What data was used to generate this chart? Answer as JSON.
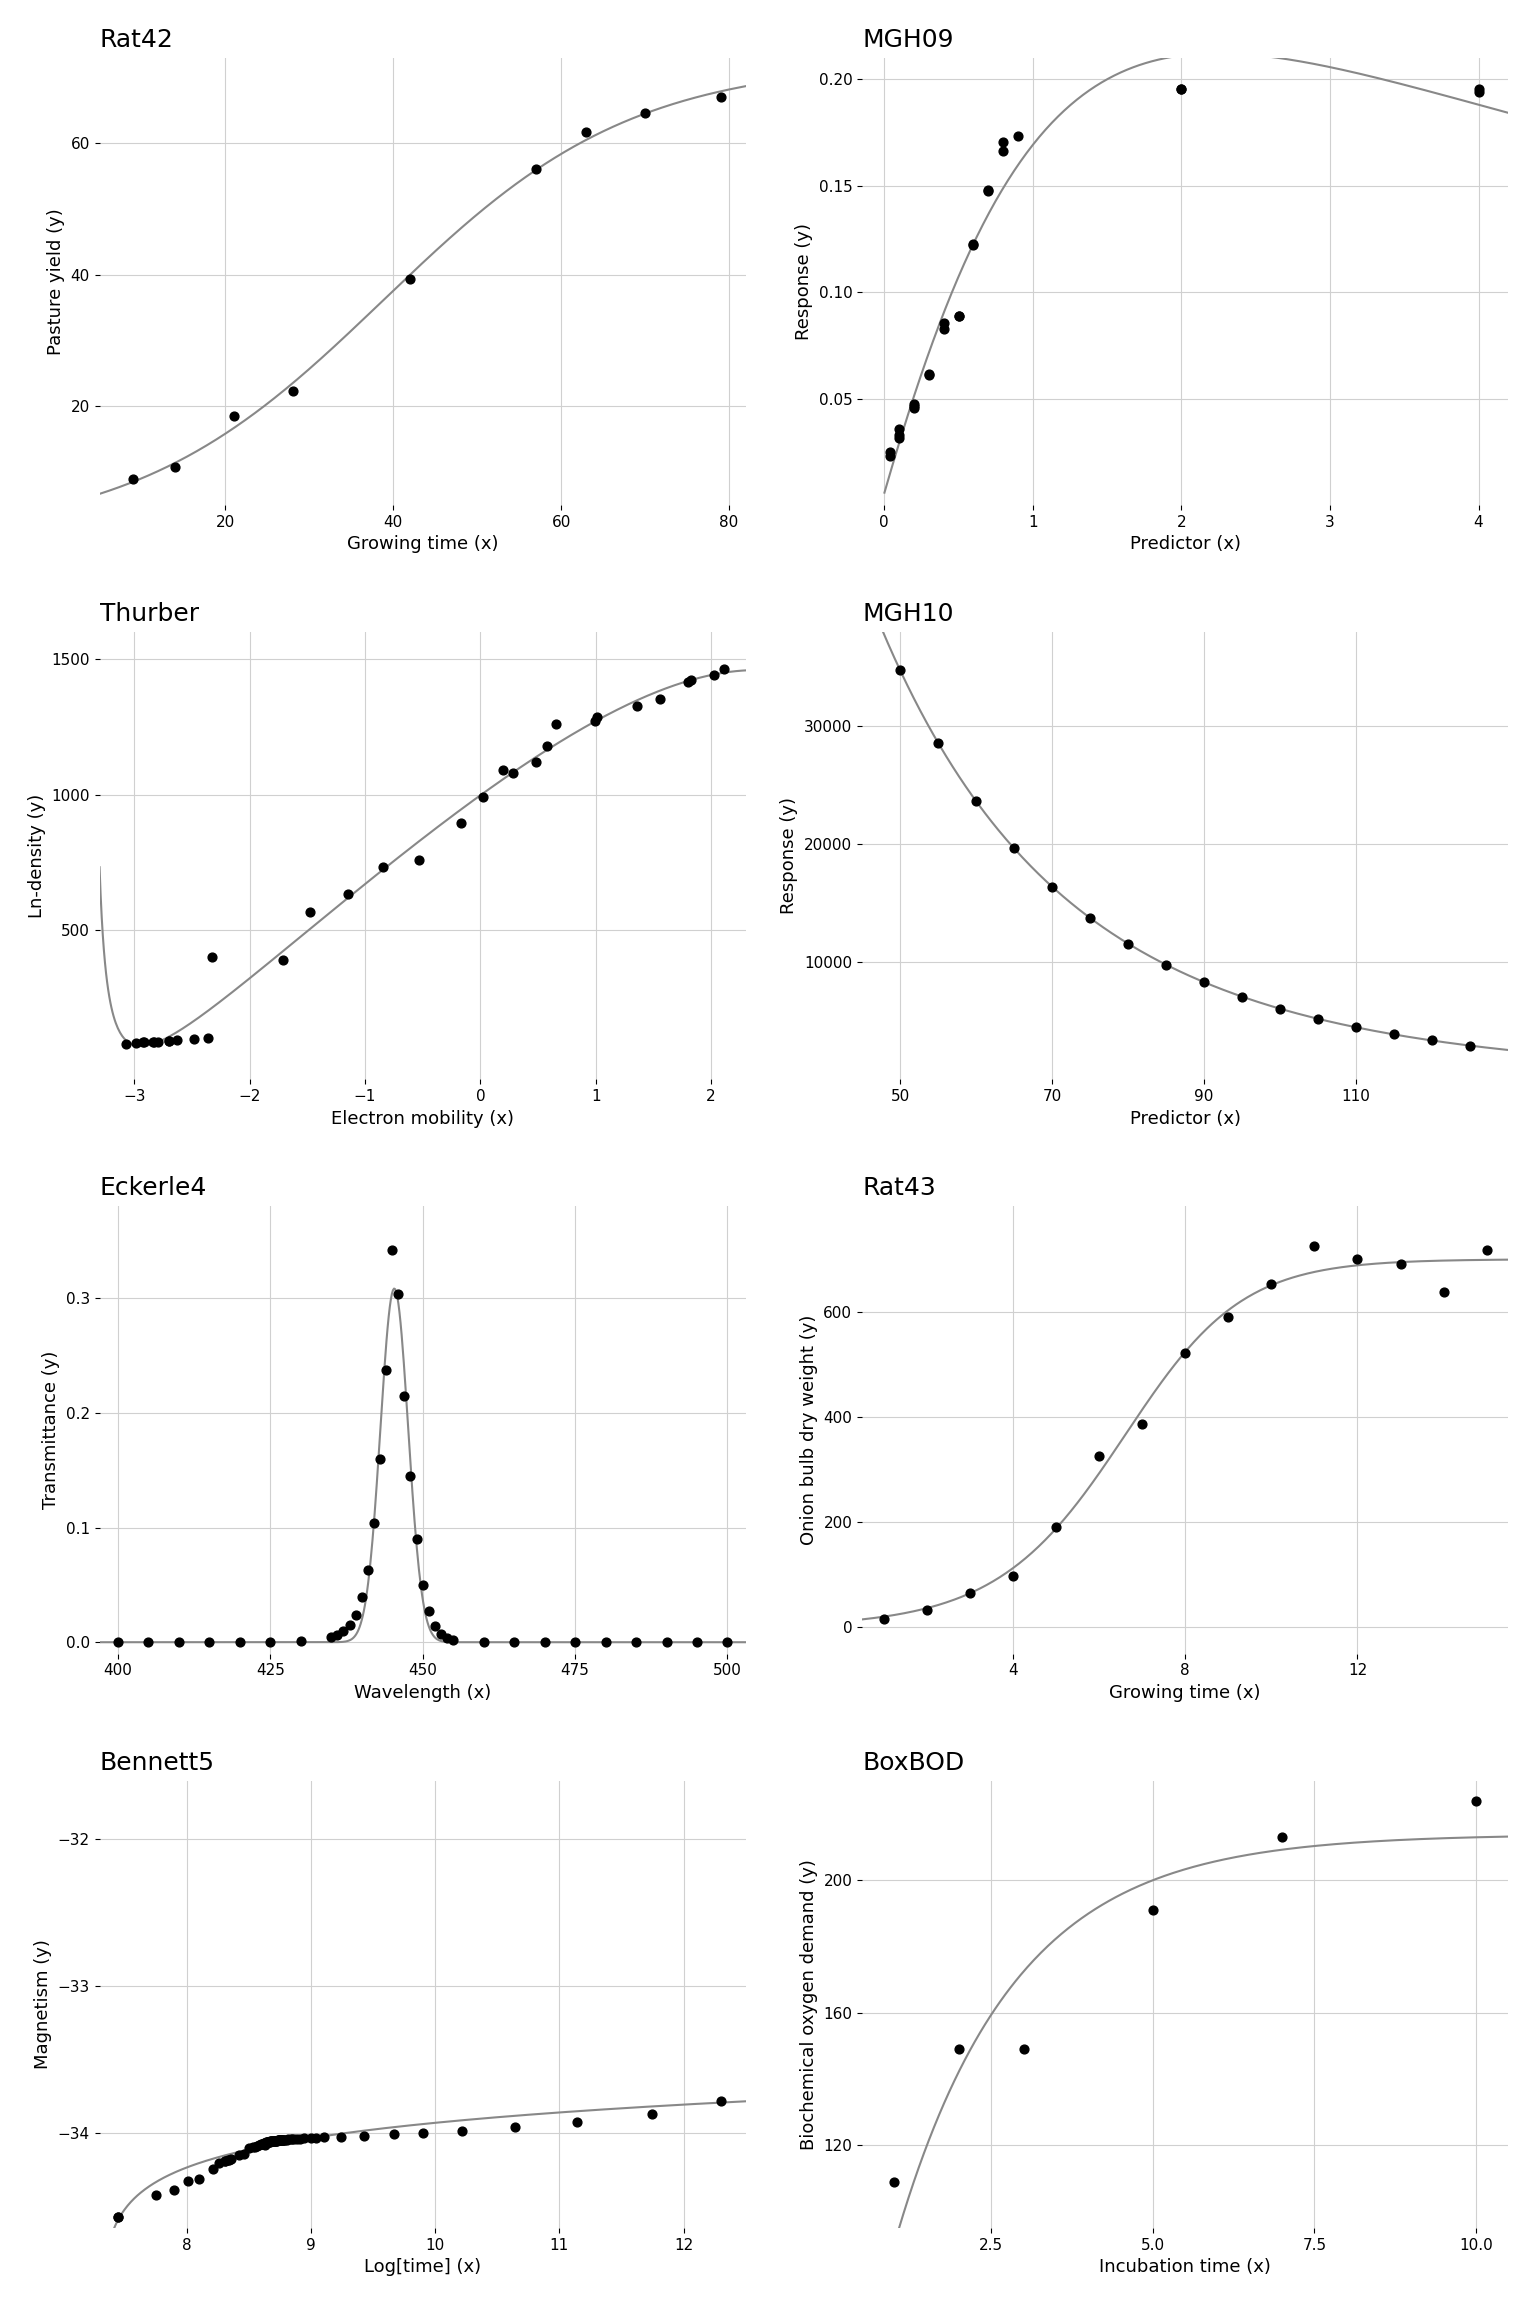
{
  "background_color": "#ffffff",
  "grid_color": "#d0d0d0",
  "line_color": "#888888",
  "dot_color": "#000000",
  "dot_size": 40,
  "line_width": 1.5,
  "title_fontsize": 18,
  "label_fontsize": 13,
  "tick_fontsize": 11,
  "rat42": {
    "title": "Rat42",
    "xlabel": "Growing time (x)",
    "ylabel": "Pasture yield (y)",
    "x": [
      9,
      14,
      21,
      28,
      42,
      57,
      63,
      70,
      79
    ],
    "y": [
      8.93,
      10.8,
      18.59,
      22.33,
      39.35,
      56.11,
      61.73,
      64.62,
      67.08
    ],
    "xlim": [
      5,
      82
    ],
    "ylim": [
      5,
      73
    ],
    "xticks": [
      20,
      40,
      60,
      80
    ],
    "yticks": [
      20,
      40,
      60
    ]
  },
  "mgh09": {
    "title": "MGH09",
    "xlabel": "Predictor (x)",
    "ylabel": "Response (y)",
    "x_pts": [
      0.04,
      0.04,
      0.1,
      0.1,
      0.1,
      0.2,
      0.2,
      0.2,
      0.3,
      0.3,
      0.4,
      0.4,
      0.5,
      0.5,
      0.6,
      0.6,
      0.7,
      0.7,
      0.8,
      0.8,
      0.9,
      2.0,
      2.0,
      4.0,
      4.0
    ],
    "y_pts": [
      0.0233,
      0.0249,
      0.0314,
      0.033,
      0.0357,
      0.0455,
      0.0466,
      0.0475,
      0.0612,
      0.0616,
      0.0827,
      0.0854,
      0.0886,
      0.0887,
      0.122,
      0.1228,
      0.1475,
      0.1481,
      0.1665,
      0.1703,
      0.1731,
      0.1952,
      0.1952,
      0.1939,
      0.1952
    ],
    "xlim": [
      -0.15,
      4.2
    ],
    "ylim": [
      0.0,
      0.21
    ],
    "xticks": [
      0,
      1,
      2,
      3,
      4
    ],
    "yticks": [
      0.05,
      0.1,
      0.15,
      0.2
    ]
  },
  "thurber": {
    "title": "Thurber",
    "xlabel": "Electron mobility (x)",
    "ylabel": "Ln-density (y)",
    "x": [
      -3.067,
      -2.981,
      -2.921,
      -2.912,
      -2.84,
      -2.831,
      -2.797,
      -2.702,
      -2.699,
      -2.633,
      -2.481,
      -2.363,
      -2.322,
      -1.709,
      -1.476,
      -1.148,
      -0.845,
      -0.533,
      -0.17,
      0.027,
      0.199,
      0.279,
      0.478,
      0.578,
      0.654,
      0.995,
      1.013,
      1.354,
      1.556,
      1.799,
      1.824,
      2.029,
      2.112
    ],
    "y": [
      80.574,
      84.248,
      87.264,
      87.195,
      89.076,
      89.608,
      89.868,
      90.101,
      92.405,
      95.854,
      100.696,
      101.06,
      401.672,
      390.724,
      567.534,
      635.316,
      733.054,
      759.087,
      894.206,
      990.785,
      1090.109,
      1080.914,
      1122.643,
      1178.351,
      1260.531,
      1273.514,
      1288.339,
      1327.543,
      1353.201,
      1414.509,
      1425.208,
      1442.472,
      1464.68
    ],
    "xlim": [
      -3.3,
      2.3
    ],
    "ylim": [
      -50,
      1600
    ],
    "xticks": [
      -3,
      -2,
      -1,
      0,
      1,
      2
    ],
    "yticks": [
      500,
      1000,
      1500
    ]
  },
  "mgh10": {
    "title": "MGH10",
    "xlabel": "Predictor (x)",
    "ylabel": "Response (y)",
    "x": [
      50,
      55,
      60,
      65,
      70,
      75,
      80,
      85,
      90,
      95,
      100,
      105,
      110,
      115,
      120,
      125
    ],
    "y": [
      34780,
      28610,
      23650,
      19630,
      16370,
      13720,
      11540,
      9744,
      8261,
      7030,
      6005,
      5147,
      4427,
      3820,
      3307,
      2872
    ],
    "xlim": [
      45,
      130
    ],
    "ylim": [
      0,
      38000
    ],
    "xticks": [
      50,
      70,
      90,
      110
    ],
    "yticks": [
      10000,
      20000,
      30000
    ]
  },
  "eckerle4": {
    "title": "Eckerle4",
    "xlabel": "Wavelength (x)",
    "ylabel": "Transmittance (y)",
    "x": [
      400,
      405,
      410,
      415,
      420,
      425,
      430,
      435,
      436,
      437,
      438,
      439,
      440,
      441,
      442,
      443,
      444,
      445,
      446,
      447,
      448,
      449,
      450,
      451,
      452,
      453,
      454,
      455,
      460,
      465,
      470,
      475,
      480,
      485,
      490,
      495,
      500
    ],
    "y": [
      0.0001575,
      0.0001545,
      0.000157,
      0.0001699,
      0.0002054,
      0.0003467,
      0.0009981,
      0.00464,
      0.006576,
      0.00976,
      0.0149,
      0.0237,
      0.0394,
      0.0629,
      0.104,
      0.16,
      0.237,
      0.342,
      0.304,
      0.215,
      0.145,
      0.0903,
      0.0498,
      0.0269,
      0.0138,
      0.00719,
      0.00377,
      0.00201,
      0.000396,
      0.00011,
      3.68e-05,
      1.24e-05,
      4.8e-06,
      1.9e-06,
      8e-07,
      3e-07,
      2e-07
    ],
    "xlim": [
      397,
      503
    ],
    "ylim": [
      -0.01,
      0.38
    ],
    "xticks": [
      400,
      425,
      450,
      475,
      500
    ],
    "yticks": [
      0.0,
      0.1,
      0.2,
      0.3
    ]
  },
  "rat43": {
    "title": "Rat43",
    "xlabel": "Growing time (x)",
    "ylabel": "Onion bulb dry weight (y)",
    "x": [
      1,
      2,
      3,
      4,
      5,
      6,
      7,
      8,
      9,
      10,
      11,
      12,
      13,
      14,
      15
    ],
    "y": [
      16.08,
      33.83,
      65.8,
      97.2,
      191.55,
      326.2,
      386.87,
      520.53,
      590.03,
      651.92,
      724.93,
      699.56,
      689.96,
      637.56,
      717.41
    ],
    "xlim": [
      0.5,
      15.5
    ],
    "ylim": [
      -50,
      800
    ],
    "xticks": [
      4,
      8,
      12
    ],
    "yticks": [
      0,
      200,
      400,
      600
    ]
  },
  "bennett5": {
    "title": "Bennett5",
    "xlabel": "Log[time] (x)",
    "ylabel": "Magnetism (y)",
    "x": [
      7.447168,
      8.102566,
      7.902852,
      8.465684,
      8.213198,
      8.334617,
      8.631379,
      8.014041,
      7.445815,
      7.752964,
      8.261763,
      8.355404,
      8.312984,
      8.309268,
      8.34,
      8.418536,
      8.505264,
      8.534,
      8.54765,
      8.56975,
      8.584,
      8.5977,
      8.607714,
      8.612828,
      8.6207,
      8.6324,
      8.6407,
      8.637528,
      8.6417,
      8.6433,
      8.65,
      8.65,
      8.655,
      8.656,
      8.6619,
      8.6665,
      8.6718,
      8.6736,
      8.6781,
      8.683,
      8.6876,
      8.695,
      8.6997,
      8.7,
      8.7044,
      8.7102,
      8.7187,
      8.721,
      8.7289,
      8.7346,
      8.7393,
      8.7413,
      8.7434,
      8.7481,
      8.7527,
      8.753,
      8.7595,
      8.7613,
      8.769,
      8.7715,
      8.7731,
      8.78,
      8.7826,
      8.7891,
      8.8057,
      8.8196,
      8.8369,
      8.8496,
      8.8684,
      8.8887,
      8.915,
      8.9457,
      8.9997,
      9.0457,
      9.1094,
      9.2443,
      9.4314,
      9.6667,
      9.9053,
      10.2183,
      10.644,
      11.1448,
      11.7448,
      12.3
    ],
    "y": [
      -34.574,
      -34.313,
      -34.388,
      -34.148,
      -34.249,
      -34.185,
      -34.085,
      -34.328,
      -34.577,
      -34.422,
      -34.206,
      -34.177,
      -34.192,
      -34.194,
      -34.19,
      -34.15,
      -34.108,
      -34.099,
      -34.095,
      -34.088,
      -34.082,
      -34.079,
      -34.077,
      -34.075,
      -34.073,
      -34.07,
      -34.069,
      -34.069,
      -34.068,
      -34.067,
      -34.065,
      -34.065,
      -34.064,
      -34.064,
      -34.063,
      -34.062,
      -34.061,
      -34.06,
      -34.06,
      -34.059,
      -34.058,
      -34.058,
      -34.057,
      -34.056,
      -34.056,
      -34.056,
      -34.055,
      -34.054,
      -34.054,
      -34.053,
      -34.053,
      -34.052,
      -34.052,
      -34.052,
      -34.051,
      -34.051,
      -34.051,
      -34.05,
      -34.05,
      -34.05,
      -34.049,
      -34.049,
      -34.049,
      -34.048,
      -34.047,
      -34.046,
      -34.046,
      -34.045,
      -34.044,
      -34.043,
      -34.042,
      -34.04,
      -34.038,
      -34.036,
      -34.033,
      -34.028,
      -34.021,
      -34.012,
      -34.001,
      -33.986,
      -33.962,
      -33.925,
      -33.87,
      -33.786
    ],
    "xlim": [
      7.3,
      12.5
    ],
    "ylim": [
      -34.65,
      -31.6
    ],
    "xticks": [
      8,
      9,
      10,
      11,
      12
    ],
    "yticks": [
      -34,
      -33,
      -32
    ]
  },
  "boxbod": {
    "title": "BoxBOD",
    "xlabel": "Incubation time (x)",
    "ylabel": "Biochemical oxygen demand (y)",
    "x": [
      1,
      2,
      3,
      5,
      7,
      10
    ],
    "y": [
      109,
      149,
      149,
      191,
      213,
      224
    ],
    "xlim": [
      0.5,
      10.5
    ],
    "ylim": [
      95,
      230
    ],
    "xticks": [
      2.5,
      5.0,
      7.5,
      10.0
    ],
    "yticks": [
      120,
      160,
      200
    ]
  }
}
